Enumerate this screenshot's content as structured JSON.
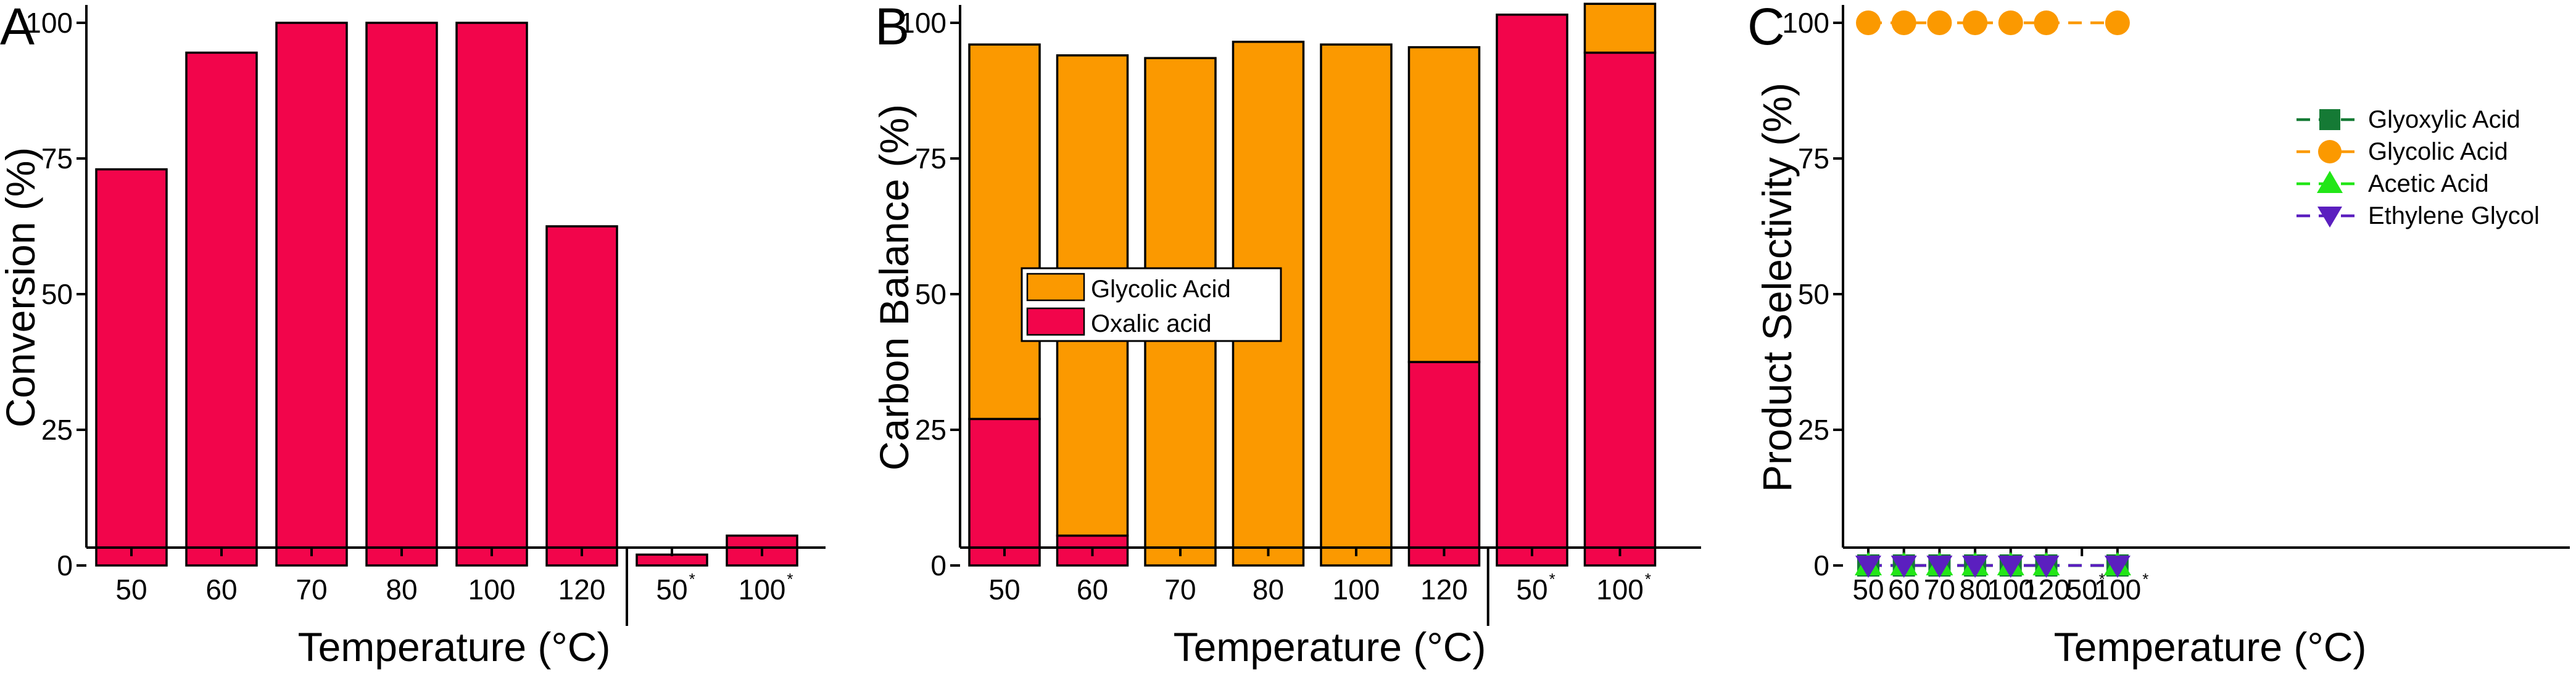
{
  "colors": {
    "oxalic": "#f2054b",
    "glycolic": "#fb9900",
    "glyoxylic": "#157a35",
    "acetic": "#22e617",
    "ethylene_glycol": "#5b1fbf",
    "axis": "#000000"
  },
  "chart_data": [
    {
      "id": "A",
      "panel_label": "A",
      "type": "bar",
      "title": "",
      "xlabel": "Temperature (°C)",
      "ylabel": "Conversion (%)",
      "ylim": [
        0,
        100
      ],
      "yticks": [
        0,
        25,
        50,
        75,
        100
      ],
      "categories": [
        {
          "label": "50",
          "star": ""
        },
        {
          "label": "60",
          "star": ""
        },
        {
          "label": "70",
          "star": ""
        },
        {
          "label": "80",
          "star": ""
        },
        {
          "label": "100",
          "star": ""
        },
        {
          "label": "120",
          "star": ""
        },
        {
          "label": "50",
          "star": "*"
        },
        {
          "label": "100",
          "star": "*"
        }
      ],
      "separator_after_index": 5,
      "values": [
        73,
        94.5,
        100,
        100,
        100,
        62.5,
        2,
        5.5
      ]
    },
    {
      "id": "B",
      "panel_label": "B",
      "type": "bar",
      "stacked": true,
      "title": "",
      "xlabel": "Temperature (°C)",
      "ylabel": "Carbon Balance (%)",
      "ylim": [
        0,
        100
      ],
      "yticks": [
        0,
        25,
        50,
        75,
        100
      ],
      "categories": [
        {
          "label": "50",
          "star": ""
        },
        {
          "label": "60",
          "star": ""
        },
        {
          "label": "70",
          "star": ""
        },
        {
          "label": "80",
          "star": ""
        },
        {
          "label": "100",
          "star": ""
        },
        {
          "label": "120",
          "star": ""
        },
        {
          "label": "50",
          "star": "*"
        },
        {
          "label": "100",
          "star": "*"
        }
      ],
      "separator_after_index": 5,
      "series": [
        {
          "name": "Oxalic acid",
          "color_key": "oxalic",
          "values": [
            27,
            5.5,
            0,
            0,
            0,
            37.5,
            101.5,
            94.5
          ]
        },
        {
          "name": "Glycolic Acid",
          "color_key": "glycolic",
          "values": [
            69,
            88.5,
            93.5,
            96.5,
            96,
            58,
            0,
            9
          ]
        }
      ],
      "legend": [
        {
          "name": "Glycolic Acid",
          "color_key": "glycolic"
        },
        {
          "name": "Oxalic acid",
          "color_key": "oxalic"
        }
      ],
      "legend_position": "center-left"
    },
    {
      "id": "C",
      "panel_label": "C",
      "type": "line",
      "title": "",
      "xlabel": "Temperature (°C)",
      "ylabel": "Product Selectivity (%)",
      "ylim": [
        0,
        100
      ],
      "yticks": [
        0,
        25,
        50,
        75,
        100
      ],
      "categories": [
        {
          "label": "50",
          "star": ""
        },
        {
          "label": "60",
          "star": ""
        },
        {
          "label": "70",
          "star": ""
        },
        {
          "label": "80",
          "star": ""
        },
        {
          "label": "100",
          "star": ""
        },
        {
          "label": "120",
          "star": ""
        },
        {
          "label": "50",
          "star": "*"
        },
        {
          "label": "100",
          "star": "*"
        }
      ],
      "series": [
        {
          "name": "Glyoxylic Acid",
          "color_key": "glyoxylic",
          "marker": "square",
          "values": [
            0,
            0,
            0,
            0,
            0,
            0,
            null,
            0
          ]
        },
        {
          "name": "Glycolic Acid",
          "color_key": "glycolic",
          "marker": "circle",
          "values": [
            100,
            100,
            100,
            100,
            100,
            100,
            null,
            100
          ]
        },
        {
          "name": "Acetic Acid",
          "color_key": "acetic",
          "marker": "triangle-up",
          "values": [
            0,
            0,
            0,
            0,
            0,
            0,
            null,
            0
          ]
        },
        {
          "name": "Ethylene Glycol",
          "color_key": "ethylene_glycol",
          "marker": "triangle-down",
          "values": [
            0,
            0,
            0,
            0,
            0,
            0,
            null,
            0
          ]
        }
      ],
      "legend_position": "top-right"
    }
  ]
}
